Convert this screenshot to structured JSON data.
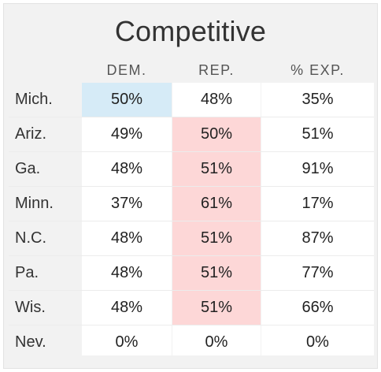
{
  "title": "Competitive",
  "columns": {
    "dem": "DEM.",
    "rep": "REP.",
    "exp": "% EXP."
  },
  "rows": [
    {
      "state": "Mich.",
      "dem": "50%",
      "rep": "48%",
      "exp": "35%",
      "leader": "dem"
    },
    {
      "state": "Ariz.",
      "dem": "49%",
      "rep": "50%",
      "exp": "51%",
      "leader": "rep"
    },
    {
      "state": "Ga.",
      "dem": "48%",
      "rep": "51%",
      "exp": "91%",
      "leader": "rep"
    },
    {
      "state": "Minn.",
      "dem": "37%",
      "rep": "61%",
      "exp": "17%",
      "leader": "rep"
    },
    {
      "state": "N.C.",
      "dem": "48%",
      "rep": "51%",
      "exp": "87%",
      "leader": "rep"
    },
    {
      "state": "Pa.",
      "dem": "48%",
      "rep": "51%",
      "exp": "77%",
      "leader": "rep"
    },
    {
      "state": "Wis.",
      "dem": "48%",
      "rep": "51%",
      "exp": "66%",
      "leader": "rep"
    },
    {
      "state": "Nev.",
      "dem": "0%",
      "rep": "0%",
      "exp": "0%",
      "leader": "none"
    }
  ],
  "colors": {
    "dem_highlight": "#d6ebf7",
    "rep_highlight": "#fdd7d7"
  }
}
